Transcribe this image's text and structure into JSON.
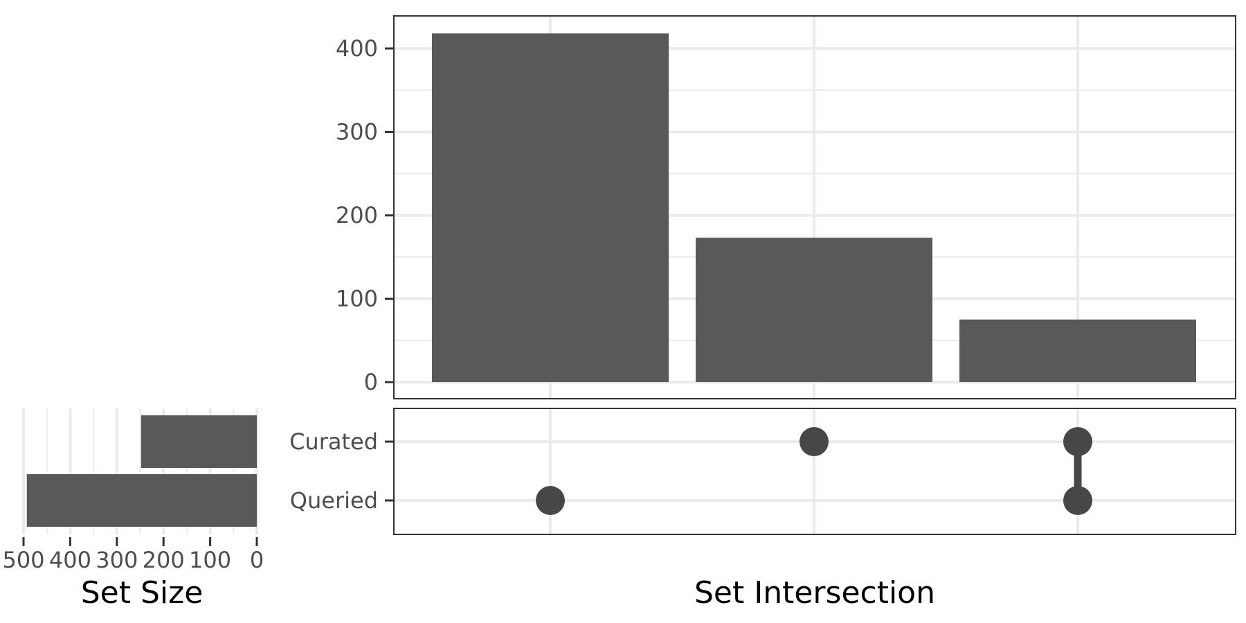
{
  "chart_data": {
    "type": "bar",
    "title": "",
    "colors": {
      "bar": "#595959",
      "dot": "#474747",
      "grid": "#ebebeb",
      "border": "#333333"
    },
    "intersections": {
      "xlabel": "Set Intersection",
      "ylabel": "",
      "ylim": [
        0,
        420
      ],
      "yticks": [
        0,
        100,
        200,
        300,
        400
      ],
      "ytick_labels": [
        "0",
        "100",
        "200",
        "300",
        "400"
      ],
      "bars": [
        {
          "value": 418,
          "members": [
            "Queried"
          ]
        },
        {
          "value": 173,
          "members": [
            "Curated"
          ]
        },
        {
          "value": 75,
          "members": [
            "Curated",
            "Queried"
          ]
        }
      ]
    },
    "sets": {
      "names": [
        "Curated",
        "Queried"
      ],
      "sizes": [
        248,
        493
      ],
      "xlabel": "Set Size",
      "xlim": [
        0,
        500
      ],
      "xticks": [
        500,
        400,
        300,
        200,
        100,
        0
      ],
      "xtick_labels": [
        "500",
        "400",
        "300",
        "200",
        "100",
        "0"
      ],
      "reversed": true
    },
    "grid": true,
    "legend": "none"
  }
}
